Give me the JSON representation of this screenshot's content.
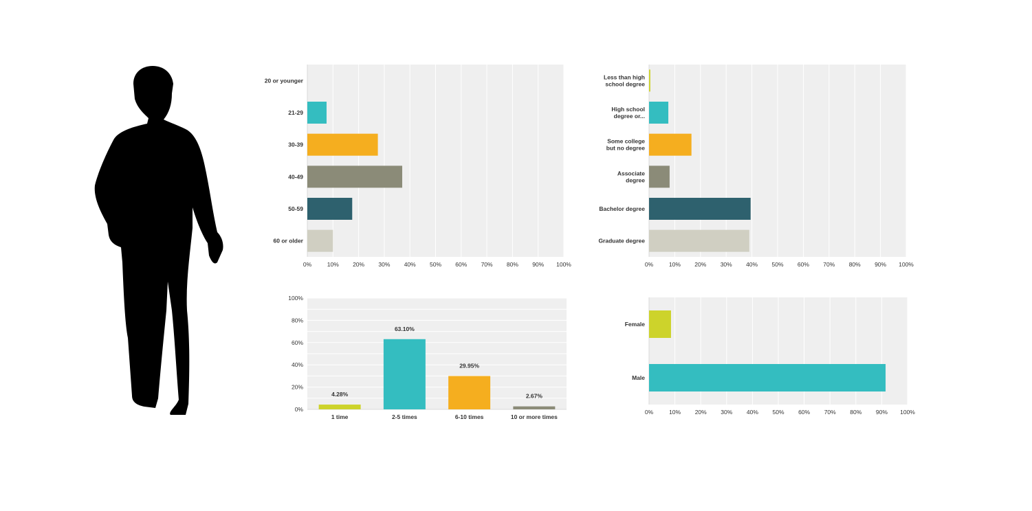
{
  "colors": {
    "lime": "#cdd32b",
    "teal": "#34bdc0",
    "orange": "#f5ae1f",
    "gray": "#8b8b78",
    "darkteal": "#2e616e",
    "beige": "#d0cfc2",
    "plot_bg": "#efefef",
    "grid": "#ffffff",
    "text": "#333333"
  },
  "figure": {
    "icon": "person-silhouette-icon"
  },
  "chart_data": [
    {
      "id": "age",
      "type": "bar",
      "orientation": "horizontal",
      "categories": [
        "20 or younger",
        "21-29",
        "30-39",
        "40-49",
        "50-59",
        "60 or older"
      ],
      "values": [
        0,
        7.5,
        27.5,
        37,
        17.5,
        10
      ],
      "colors": [
        "#cdd32b",
        "#34bdc0",
        "#f5ae1f",
        "#8b8b78",
        "#2e616e",
        "#d0cfc2"
      ],
      "xlim": [
        0,
        100
      ],
      "xticks": [
        "0%",
        "10%",
        "20%",
        "30%",
        "40%",
        "50%",
        "60%",
        "70%",
        "80%",
        "90%",
        "100%"
      ],
      "grid": true
    },
    {
      "id": "education",
      "type": "bar",
      "orientation": "horizontal",
      "categories": [
        [
          "Less than high",
          "school degree"
        ],
        [
          "High school",
          "degree or..."
        ],
        [
          "Some college",
          "but no degree"
        ],
        [
          "Associate",
          "degree"
        ],
        [
          "Bachelor degree"
        ],
        [
          "Graduate degree"
        ]
      ],
      "values": [
        0.5,
        7.5,
        16.5,
        8,
        39.5,
        39
      ],
      "colors": [
        "#cdd32b",
        "#34bdc0",
        "#f5ae1f",
        "#8b8b78",
        "#2e616e",
        "#d0cfc2"
      ],
      "xlim": [
        0,
        100
      ],
      "xticks": [
        "0%",
        "10%",
        "20%",
        "30%",
        "40%",
        "50%",
        "60%",
        "70%",
        "80%",
        "90%",
        "100%"
      ],
      "grid": true
    },
    {
      "id": "frequency",
      "type": "bar",
      "orientation": "vertical",
      "categories": [
        "1 time",
        "2-5 times",
        "6-10 times",
        "10 or more times"
      ],
      "values": [
        4.28,
        63.1,
        29.95,
        2.67
      ],
      "labels": [
        "4.28%",
        "63.10%",
        "29.95%",
        "2.67%"
      ],
      "colors": [
        "#cdd32b",
        "#34bdc0",
        "#f5ae1f",
        "#8b8b78"
      ],
      "ylim": [
        0,
        100
      ],
      "yticks": [
        "0%",
        "20%",
        "40%",
        "60%",
        "80%",
        "100%"
      ],
      "grid": true
    },
    {
      "id": "gender",
      "type": "bar",
      "orientation": "horizontal",
      "categories": [
        "Female",
        "Male"
      ],
      "values": [
        8.5,
        91.5
      ],
      "colors": [
        "#cdd32b",
        "#34bdc0"
      ],
      "xlim": [
        0,
        100
      ],
      "xticks": [
        "0%",
        "10%",
        "20%",
        "30%",
        "40%",
        "50%",
        "60%",
        "70%",
        "80%",
        "90%",
        "100%"
      ],
      "grid": true
    }
  ]
}
